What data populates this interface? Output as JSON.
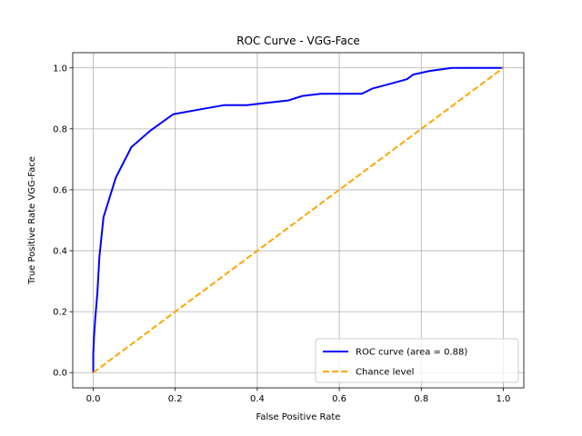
{
  "chart_data": {
    "type": "line",
    "title": "ROC Curve - VGG-Face",
    "xlabel": "False Positive Rate",
    "ylabel": "True Positive Rate VGG-Face",
    "xlim": [
      -0.05,
      1.05
    ],
    "ylim": [
      -0.05,
      1.05
    ],
    "xticks": [
      0.0,
      0.2,
      0.4,
      0.6,
      0.8,
      1.0
    ],
    "yticks": [
      0.0,
      0.2,
      0.4,
      0.6,
      0.8,
      1.0
    ],
    "xtick_labels": [
      "0.0",
      "0.2",
      "0.4",
      "0.6",
      "0.8",
      "1.0"
    ],
    "ytick_labels": [
      "0.0",
      "0.2",
      "0.4",
      "0.6",
      "0.8",
      "1.0"
    ],
    "grid": true,
    "legend_position": "lower-right",
    "series": [
      {
        "name": "ROC curve (area = 0.88)",
        "color": "#0000ff",
        "style": "solid",
        "x": [
          0.0,
          0.0,
          0.002,
          0.005,
          0.01,
          0.015,
          0.025,
          0.055,
          0.093,
          0.14,
          0.195,
          0.265,
          0.32,
          0.375,
          0.42,
          0.475,
          0.51,
          0.555,
          0.6,
          0.655,
          0.68,
          0.725,
          0.765,
          0.78,
          0.82,
          0.875,
          0.93,
          1.0
        ],
        "y": [
          0.0,
          0.06,
          0.12,
          0.18,
          0.26,
          0.38,
          0.51,
          0.64,
          0.74,
          0.795,
          0.848,
          0.865,
          0.878,
          0.878,
          0.885,
          0.893,
          0.908,
          0.915,
          0.915,
          0.915,
          0.932,
          0.948,
          0.963,
          0.978,
          0.99,
          1.0,
          1.0,
          1.0
        ]
      },
      {
        "name": "Chance level",
        "color": "#ffa500",
        "style": "dashed",
        "x": [
          0.0,
          1.0
        ],
        "y": [
          0.0,
          1.0
        ]
      }
    ]
  }
}
